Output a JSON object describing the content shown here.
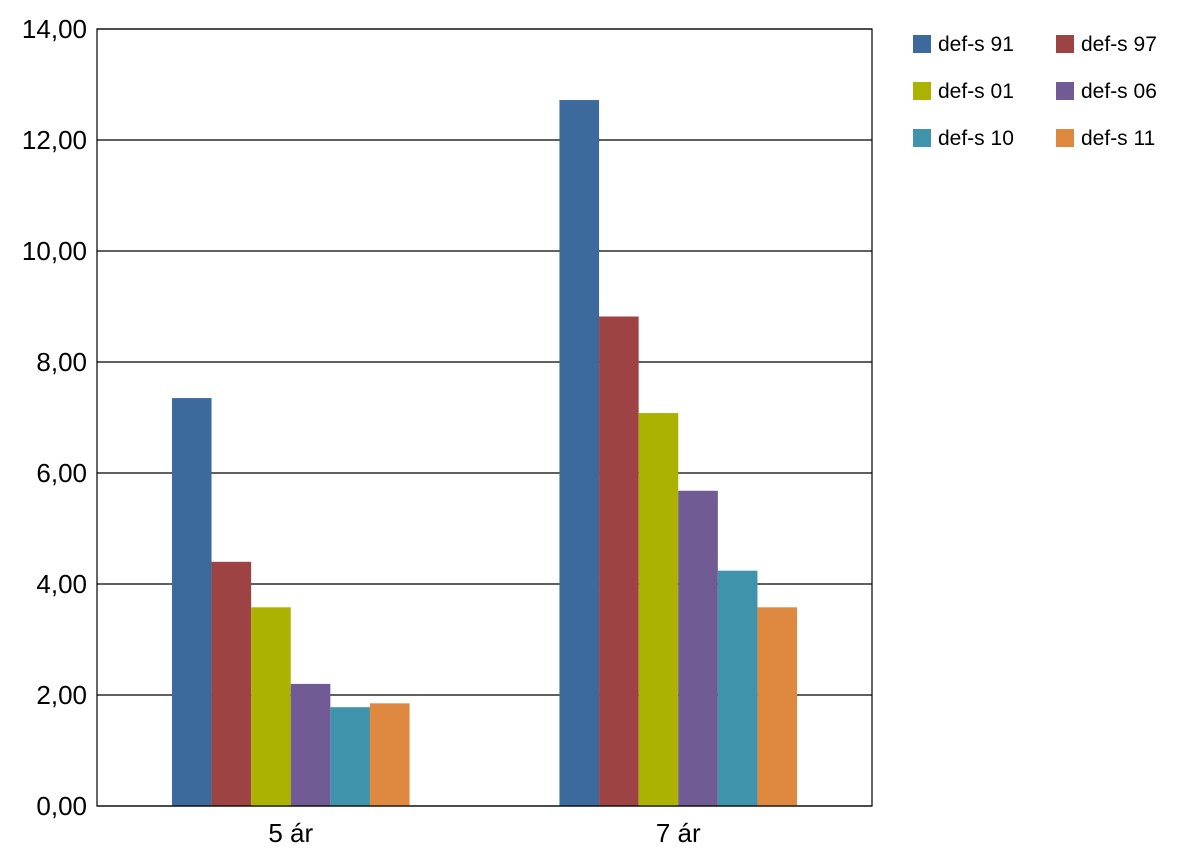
{
  "chart_data": {
    "type": "bar",
    "title": "",
    "xlabel": "",
    "ylabel": "",
    "categories": [
      "5 ár",
      "7 ár"
    ],
    "series": [
      {
        "name": "def-s 91",
        "color": "#3d6a9c",
        "values": [
          7.35,
          12.72
        ]
      },
      {
        "name": "def-s 97",
        "color": "#9e4343",
        "values": [
          4.4,
          8.82
        ]
      },
      {
        "name": "def-s 01",
        "color": "#abb300",
        "values": [
          3.58,
          7.08
        ]
      },
      {
        "name": "def-s 06",
        "color": "#715b94",
        "values": [
          2.2,
          5.68
        ]
      },
      {
        "name": "def-s 10",
        "color": "#3f93aa",
        "values": [
          1.78,
          4.24
        ]
      },
      {
        "name": "def-s 11",
        "color": "#de8840",
        "values": [
          1.85,
          3.58
        ]
      }
    ],
    "ylim": [
      0,
      14
    ],
    "yticks": [
      "0,00",
      "2,00",
      "4,00",
      "6,00",
      "8,00",
      "10,00",
      "12,00",
      "14,00"
    ],
    "grid": true,
    "legend_position": "top-right"
  }
}
